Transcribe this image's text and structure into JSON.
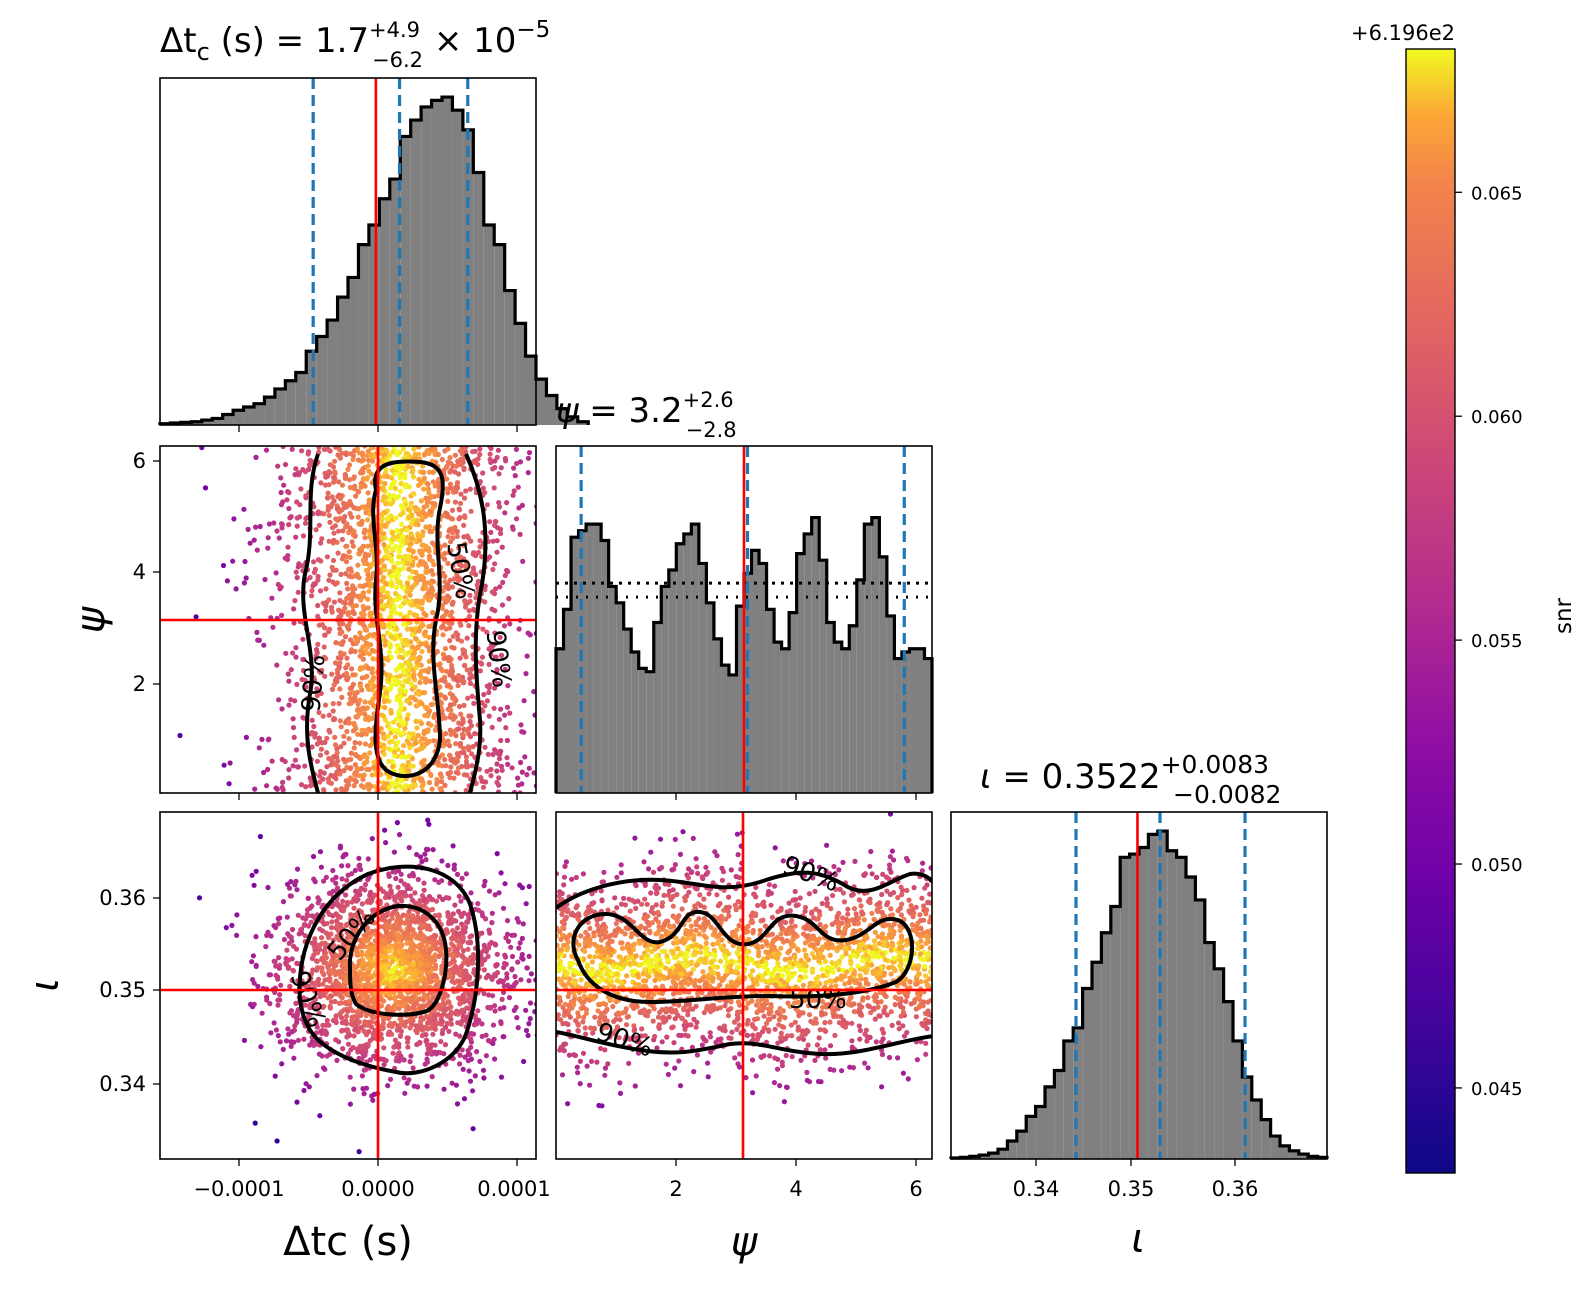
{
  "chart_data": [
    {
      "type": "histogram",
      "panel": "dtc-marginal",
      "title": {
        "lhs": "Δt",
        "sub": "c",
        "units": " (s) = 1.7",
        "sup": "+4.9",
        "low": "−6.2",
        "tail": " × 10",
        "exp": "−5"
      },
      "x_range": [
        -0.000155,
        0.000115
      ],
      "x_ticks": [],
      "injected": 0.0,
      "quantiles": [
        -4.5e-05,
        1.7e-05,
        6.6e-05
      ],
      "bins_start": -0.000155,
      "bin_width": 7.5e-06,
      "counts": [
        0.004,
        0.006,
        0.008,
        0.01,
        0.015,
        0.02,
        0.032,
        0.045,
        0.055,
        0.065,
        0.085,
        0.11,
        0.135,
        0.16,
        0.225,
        0.27,
        0.32,
        0.39,
        0.45,
        0.55,
        0.61,
        0.69,
        0.75,
        0.88,
        0.93,
        0.97,
        0.99,
        1.0,
        0.96,
        0.9,
        0.77,
        0.61,
        0.55,
        0.41,
        0.31,
        0.21,
        0.14,
        0.09,
        0.05,
        0.025,
        0.01
      ]
    },
    {
      "type": "histogram",
      "panel": "psi-marginal",
      "title": {
        "lhs": "ψ",
        "units": " = 3.2",
        "sup": "+2.6",
        "low": "−2.8"
      },
      "x_range": [
        0.0,
        6.2832
      ],
      "injected": 3.1416,
      "quantiles": [
        0.42,
        3.2,
        5.82
      ],
      "prior_level": 0.64,
      "counts": [
        0.44,
        0.56,
        0.78,
        0.8,
        0.82,
        0.82,
        0.77,
        0.63,
        0.58,
        0.5,
        0.43,
        0.38,
        0.37,
        0.52,
        0.63,
        0.68,
        0.76,
        0.79,
        0.82,
        0.7,
        0.58,
        0.47,
        0.39,
        0.36,
        0.57,
        0.67,
        0.74,
        0.7,
        0.56,
        0.46,
        0.44,
        0.55,
        0.73,
        0.79,
        0.84,
        0.71,
        0.52,
        0.46,
        0.44,
        0.51,
        0.65,
        0.82,
        0.84,
        0.72,
        0.54,
        0.41,
        0.43,
        0.44,
        0.44,
        0.41
      ],
      "x_ticks": [
        2,
        4,
        6
      ],
      "x_label": "ψ"
    },
    {
      "type": "histogram",
      "panel": "iota-marginal",
      "title": {
        "lhs": "ι",
        "units": " = 0.3522",
        "sup": "+0.0083",
        "low": "−0.0082"
      },
      "x_range": [
        0.3318,
        0.3685
      ],
      "injected": 0.35,
      "quantiles": [
        0.344,
        0.3522,
        0.3605
      ],
      "counts": [
        0.003,
        0.005,
        0.008,
        0.012,
        0.018,
        0.03,
        0.055,
        0.085,
        0.13,
        0.16,
        0.22,
        0.27,
        0.36,
        0.4,
        0.52,
        0.6,
        0.69,
        0.77,
        0.92,
        0.93,
        0.95,
        0.99,
        1.0,
        0.94,
        0.92,
        0.86,
        0.79,
        0.66,
        0.58,
        0.48,
        0.36,
        0.25,
        0.18,
        0.12,
        0.07,
        0.04,
        0.025,
        0.015,
        0.008,
        0.005
      ],
      "x_ticks": [
        0.34,
        0.35,
        0.36
      ],
      "x_tick_labels": [
        "0.34",
        "0.35",
        "0.36"
      ],
      "x_label": "ι"
    },
    {
      "type": "scatter",
      "panel": "dtc-psi",
      "x_range": [
        -0.000155,
        0.000115
      ],
      "y_range": [
        0.0,
        6.2832
      ],
      "y_ticks": [
        2,
        4,
        6
      ],
      "y_label": "ψ",
      "injected": [
        0.0,
        3.1416
      ],
      "contour_labels": [
        "50%",
        "90%",
        "90%"
      ]
    },
    {
      "type": "scatter",
      "panel": "dtc-iota",
      "x_range": [
        -0.000155,
        0.000115
      ],
      "y_range": [
        0.3318,
        0.3685
      ],
      "x_ticks": [
        -0.0001,
        0.0,
        0.0001
      ],
      "x_tick_labels": [
        "−0.0001",
        "0.0000",
        "0.0001"
      ],
      "y_ticks": [
        0.34,
        0.35,
        0.36
      ],
      "y_tick_labels": [
        "0.34",
        "0.35",
        "0.36"
      ],
      "x_label": "Δtc (s)",
      "y_label": "ι",
      "injected": [
        0.0,
        0.35
      ],
      "contour_labels": [
        "50%",
        "90%"
      ]
    },
    {
      "type": "scatter",
      "panel": "psi-iota",
      "x_range": [
        0.0,
        6.2832
      ],
      "y_range": [
        0.3318,
        0.3685
      ],
      "x_ticks": [
        2,
        4,
        6
      ],
      "injected": [
        3.1416,
        0.35
      ],
      "contour_labels": [
        "90%",
        "50%",
        "90%"
      ]
    },
    {
      "type": "colorbar",
      "label": "snr",
      "offset": "+6.196e2",
      "range": [
        0.0431,
        0.0682
      ],
      "ticks": [
        0.045,
        0.05,
        0.055,
        0.06,
        0.065
      ],
      "tick_labels": [
        "0.045",
        "0.050",
        "0.055",
        "0.060",
        "0.065"
      ],
      "colormap": "plasma"
    }
  ],
  "colors": {
    "hist_fill": "#808080",
    "injection": "#ff0000",
    "quantile": "#1f77b4",
    "contour": "#000000"
  }
}
